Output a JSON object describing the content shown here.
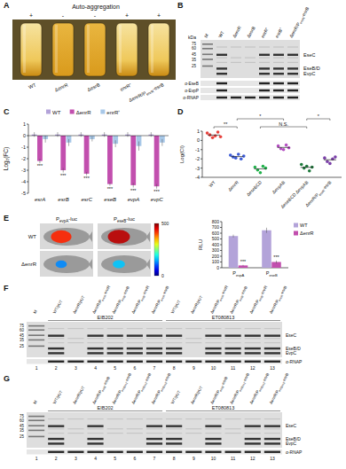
{
  "panel_letters": [
    "A",
    "B",
    "C",
    "D",
    "E",
    "F",
    "G"
  ],
  "panel_a": {
    "title": "Auto-aggregation",
    "signs": [
      "+",
      "-",
      "-",
      "+",
      "+"
    ],
    "strains": [
      "WT",
      "ΔenrR",
      "ΔesrB",
      "enrR⁺",
      "ΔenrR/PenrR-esrB"
    ]
  },
  "panel_b": {
    "lanes": [
      "M",
      "WT",
      "ΔenrR",
      "ΔesrB",
      "enrR⁺",
      "esrB⁺",
      "ΔenrR/PenrR-esrB"
    ],
    "kda_label": "kDa",
    "markers": [
      75,
      60,
      45,
      35,
      25
    ],
    "bands": [
      "EseC",
      "EseB/D",
      "EvpC"
    ],
    "band_presence": [
      1,
      0,
      0,
      1,
      1,
      1
    ],
    "strips": [
      "α-EseB",
      "α-EvpP",
      "α-RNAP"
    ],
    "strip_presence": [
      [
        1,
        0,
        0,
        1,
        1,
        1
      ],
      [
        1,
        0,
        0,
        1,
        1,
        1
      ],
      [
        1,
        1,
        1,
        1,
        1,
        1
      ]
    ]
  },
  "chart_data": [
    {
      "type": "bar",
      "y_label": "Log₂(FC)",
      "categories": [
        "esrA",
        "esrB",
        "esrC",
        "eseB",
        "evpA",
        "evpC"
      ],
      "series": [
        {
          "name": "WT",
          "color": "#b3a3d9",
          "values": [
            0.1,
            0.1,
            0.1,
            0.1,
            0.1,
            0.1
          ],
          "errors": [
            0.2,
            0.2,
            0.2,
            0.2,
            0.2,
            0.2
          ]
        },
        {
          "name": "ΔenrR",
          "color": "#c24fae",
          "values": [
            -2.2,
            -3.0,
            -3.3,
            -4.2,
            -4.3,
            -4.4
          ],
          "errors": [
            0.2,
            0.2,
            0.15,
            0.15,
            0.2,
            0.2
          ],
          "annotations": [
            "***",
            "***",
            "***",
            "***",
            "***",
            "***"
          ]
        },
        {
          "name": "enrR⁺",
          "color": "#a8c8e8",
          "values": [
            -0.3,
            -0.6,
            -0.3,
            -0.7,
            -0.9,
            -0.6
          ],
          "errors": [
            0.3,
            0.3,
            0.2,
            0.3,
            0.4,
            0.3
          ]
        }
      ],
      "ylim": [
        -5,
        1
      ],
      "yticks": [
        1,
        0,
        -1,
        -2,
        -3,
        -4,
        -5
      ],
      "legend": "top",
      "grid": false
    },
    {
      "type": "scatter",
      "y_label": "Log(CI)",
      "categories": [
        "WT",
        "ΔenrR",
        "ΔeseBCD",
        "ΔevpAB",
        "ΔeseBCD ΔevpAB",
        "ΔenrR/PenrR-esrB"
      ],
      "colors": [
        "#e8413c",
        "#3b5bd6",
        "#22b14c",
        "#b44fc2",
        "#1e7a3c",
        "#7a3fa8"
      ],
      "values": [
        [
          0.8,
          0.6,
          0.3,
          0.5,
          0.9,
          0.4
        ],
        [
          -1.6,
          -1.8,
          -1.9,
          -1.5,
          -2.0,
          -1.7
        ],
        [
          -2.9,
          -3.2,
          -3.5,
          -2.8,
          -3.0
        ],
        [
          -0.6,
          -0.9,
          -1.0,
          -0.5,
          -0.8
        ],
        [
          -2.6,
          -3.0,
          -2.8,
          -3.3,
          -2.9
        ],
        [
          -1.9,
          -2.3,
          -2.5,
          -2.0,
          -1.8
        ]
      ],
      "ylim": [
        -4,
        1
      ],
      "yticks": [
        1,
        0,
        -1,
        -2,
        -3,
        -4
      ],
      "annotations": [
        {
          "text": "**",
          "from": 0,
          "to": 1
        },
        {
          "text": "*",
          "from": 1,
          "to": 3
        },
        {
          "text": "N.S.",
          "from": 2,
          "to": 4
        },
        {
          "text": "*",
          "from": 4,
          "to": 5
        }
      ],
      "grid": false
    },
    {
      "type": "bar",
      "y_label": "RLU",
      "categories": [
        "PevpA",
        "PeseB"
      ],
      "series": [
        {
          "name": "WT",
          "color": "#b3a3d9",
          "values": [
            550,
            650
          ],
          "errors": [
            25,
            45
          ]
        },
        {
          "name": "ΔenrR",
          "color": "#c24fae",
          "values": [
            40,
            100
          ],
          "errors": [
            10,
            25
          ],
          "annotations": [
            "***",
            "***"
          ]
        }
      ],
      "ylim": [
        0,
        800
      ],
      "yticks": [
        0,
        100,
        200,
        300,
        400,
        500,
        600,
        700,
        800
      ],
      "legend": "right",
      "grid": false
    }
  ],
  "panel_e_images": {
    "rows": [
      "WT",
      "ΔenrR"
    ],
    "columns": [
      "PevpA-luc",
      "PeseB-luc"
    ],
    "intensity": [
      [
        420,
        470
      ],
      [
        130,
        160
      ]
    ],
    "colorbar": {
      "range": [
        0,
        500
      ],
      "ticks": [
        0,
        500
      ]
    }
  },
  "panel_f": {
    "lanes": [
      "M",
      "WT/pUT",
      "ΔenrR/pUT",
      "ΔenrR/PenrR-enrR",
      "ΔenrR/PesrB-esrB",
      "ΔenrR/PesrB-enrR",
      "ΔenrR/PenrR-esrB",
      "WT/pUT",
      "ΔenrR/pUT",
      "ΔenrR/PenrR-enrR",
      "ΔenrR/PesrB-esrB",
      "ΔenrR/PesrB-enrR",
      "ΔenrR/PenrR-esrB"
    ],
    "lane_numbers": [
      1,
      2,
      3,
      4,
      5,
      6,
      7,
      8,
      9,
      10,
      11,
      12,
      13
    ],
    "groups": [
      "EIB202",
      "ET080813"
    ],
    "markers": [
      75,
      60,
      45,
      35,
      25
    ],
    "bands": [
      "EseC",
      "EseB/D",
      "EvpC"
    ],
    "band_presence": [
      1,
      0,
      1,
      1,
      1,
      1,
      1,
      0,
      1,
      1,
      1,
      1
    ],
    "strip": "α-RNAP"
  },
  "panel_g": {
    "lanes": [
      "M",
      "WT/pUT",
      "ΔenrR/pUT",
      "ΔenrR/PesrB-esrB",
      "ΔenrR/PesrBm1-esrB",
      "ΔenrR/PesrBm2-esrB",
      "ΔenrR/PesrBm3-esrB",
      "WT/pUT",
      "ΔenrR/pUT",
      "ΔenrR/PesrB-esrB",
      "ΔenrR/PesrBm1-esrB",
      "ΔenrR/PesrBm2-esrB",
      "ΔenrR/PesrBm3-esrB"
    ],
    "lane_numbers": [
      1,
      2,
      3,
      4,
      5,
      6,
      7,
      8,
      9,
      10,
      11,
      12,
      13
    ],
    "groups": [
      "EIB202",
      "ET080813"
    ],
    "markers": [
      75,
      60,
      45,
      35,
      25
    ],
    "bands": [
      "EseC",
      "EseB/D",
      "EvpC"
    ],
    "band_presence": [
      1,
      0,
      1,
      0,
      0,
      1,
      1,
      0,
      1,
      0,
      1,
      1
    ],
    "strip": "α-RNAP"
  }
}
